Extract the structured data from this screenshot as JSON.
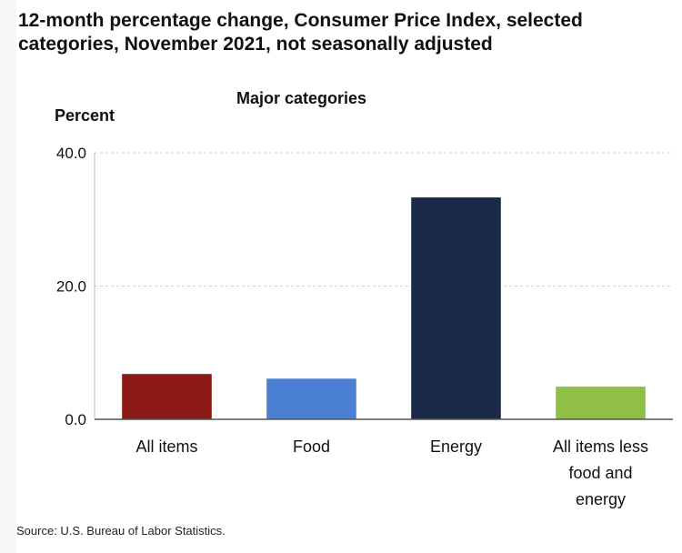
{
  "title": "12-month percentage change, Consumer Price Index, selected categories, November 2021, not seasonally adjusted",
  "subtitle": "Major categories",
  "ylabel": "Percent",
  "source": "Source: U.S. Bureau of Labor Statistics.",
  "chart_data": {
    "type": "bar",
    "title": "12-month percentage change, Consumer Price Index, selected categories, November 2021, not seasonally adjusted",
    "subtitle": "Major categories",
    "ylabel": "Percent",
    "xlabel": "",
    "ylim": [
      0,
      40
    ],
    "yticks": [
      0,
      20,
      40
    ],
    "ytick_labels": [
      "0.0",
      "20.0",
      "40.0"
    ],
    "grid": true,
    "categories": [
      "All items",
      "Food",
      "Energy",
      "All items less food and energy"
    ],
    "category_lines": [
      [
        "All items"
      ],
      [
        "Food"
      ],
      [
        "Energy"
      ],
      [
        "All items less",
        "food and",
        "energy"
      ]
    ],
    "values": [
      6.8,
      6.1,
      33.3,
      4.9
    ],
    "colors": [
      "#8b1a17",
      "#4a7fd4",
      "#1b2a48",
      "#8fbf45"
    ]
  }
}
